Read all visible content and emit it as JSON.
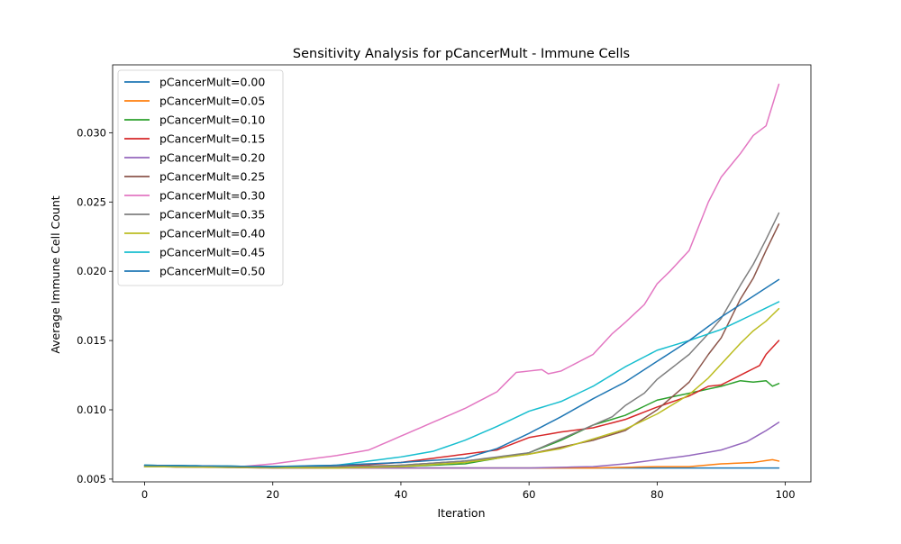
{
  "chart_data": {
    "type": "line",
    "title": "Sensitivity Analysis for pCancerMult - Immune Cells",
    "xlabel": "Iteration",
    "ylabel": "Average Immune Cell Count",
    "xlim": [
      -5,
      104
    ],
    "ylim": [
      0.0048,
      0.0349
    ],
    "xticks": [
      0,
      20,
      40,
      60,
      80,
      100
    ],
    "xtick_labels": [
      "0",
      "20",
      "40",
      "60",
      "80",
      "100"
    ],
    "yticks": [
      0.005,
      0.01,
      0.015,
      0.02,
      0.025,
      0.03
    ],
    "ytick_labels": [
      "0.005",
      "0.010",
      "0.015",
      "0.020",
      "0.025",
      "0.030"
    ],
    "grid": false,
    "legend_position": "upper-left",
    "x": {
      "start": 0,
      "end": 99,
      "step": 1
    },
    "series": [
      {
        "name": "pCancerMult=0.00",
        "color": "#1f77b4",
        "knots": [
          [
            0,
            0.0059
          ],
          [
            20,
            0.0059
          ],
          [
            40,
            0.0058
          ],
          [
            60,
            0.0058
          ],
          [
            99,
            0.0058
          ]
        ]
      },
      {
        "name": "pCancerMult=0.05",
        "color": "#ff7f0e",
        "knots": [
          [
            0,
            0.0059
          ],
          [
            30,
            0.0058
          ],
          [
            60,
            0.0058
          ],
          [
            70,
            0.0058
          ],
          [
            80,
            0.0059
          ],
          [
            85,
            0.0059
          ],
          [
            90,
            0.0061
          ],
          [
            95,
            0.0062
          ],
          [
            98,
            0.0064
          ],
          [
            99,
            0.0063
          ]
        ]
      },
      {
        "name": "pCancerMult=0.10",
        "color": "#2ca02c",
        "knots": [
          [
            0,
            0.006
          ],
          [
            20,
            0.0059
          ],
          [
            40,
            0.0059
          ],
          [
            50,
            0.0061
          ],
          [
            60,
            0.0069
          ],
          [
            65,
            0.0078
          ],
          [
            70,
            0.0089
          ],
          [
            75,
            0.0096
          ],
          [
            80,
            0.0107
          ],
          [
            85,
            0.0112
          ],
          [
            90,
            0.0117
          ],
          [
            93,
            0.0121
          ],
          [
            95,
            0.012
          ],
          [
            97,
            0.0121
          ],
          [
            98,
            0.0117
          ],
          [
            99,
            0.0119
          ]
        ]
      },
      {
        "name": "pCancerMult=0.15",
        "color": "#d62728",
        "knots": [
          [
            0,
            0.0059
          ],
          [
            20,
            0.0059
          ],
          [
            30,
            0.0059
          ],
          [
            40,
            0.0062
          ],
          [
            50,
            0.0068
          ],
          [
            55,
            0.0071
          ],
          [
            60,
            0.008
          ],
          [
            65,
            0.0084
          ],
          [
            70,
            0.0087
          ],
          [
            75,
            0.0093
          ],
          [
            80,
            0.0102
          ],
          [
            85,
            0.011
          ],
          [
            88,
            0.0117
          ],
          [
            90,
            0.0118
          ],
          [
            93,
            0.0125
          ],
          [
            96,
            0.0132
          ],
          [
            97,
            0.014
          ],
          [
            99,
            0.015
          ]
        ]
      },
      {
        "name": "pCancerMult=0.20",
        "color": "#9467bd",
        "knots": [
          [
            0,
            0.0059
          ],
          [
            30,
            0.0058
          ],
          [
            60,
            0.0058
          ],
          [
            70,
            0.0059
          ],
          [
            75,
            0.0061
          ],
          [
            80,
            0.0064
          ],
          [
            85,
            0.0067
          ],
          [
            90,
            0.0071
          ],
          [
            94,
            0.0077
          ],
          [
            97,
            0.0085
          ],
          [
            99,
            0.0091
          ]
        ]
      },
      {
        "name": "pCancerMult=0.25",
        "color": "#8c564b",
        "knots": [
          [
            0,
            0.0059
          ],
          [
            20,
            0.0058
          ],
          [
            30,
            0.0058
          ],
          [
            40,
            0.006
          ],
          [
            50,
            0.0063
          ],
          [
            60,
            0.0068
          ],
          [
            70,
            0.0078
          ],
          [
            75,
            0.0085
          ],
          [
            80,
            0.01
          ],
          [
            85,
            0.012
          ],
          [
            88,
            0.014
          ],
          [
            90,
            0.0152
          ],
          [
            93,
            0.018
          ],
          [
            95,
            0.0195
          ],
          [
            97,
            0.0215
          ],
          [
            99,
            0.0234
          ]
        ]
      },
      {
        "name": "pCancerMult=0.30",
        "color": "#e377c2",
        "knots": [
          [
            0,
            0.0059
          ],
          [
            15,
            0.0059
          ],
          [
            20,
            0.0061
          ],
          [
            25,
            0.0064
          ],
          [
            30,
            0.0067
          ],
          [
            35,
            0.0071
          ],
          [
            40,
            0.0081
          ],
          [
            45,
            0.0091
          ],
          [
            50,
            0.0101
          ],
          [
            55,
            0.0113
          ],
          [
            58,
            0.0127
          ],
          [
            60,
            0.0128
          ],
          [
            62,
            0.0129
          ],
          [
            63,
            0.0126
          ],
          [
            65,
            0.0128
          ],
          [
            70,
            0.014
          ],
          [
            73,
            0.0155
          ],
          [
            75,
            0.0163
          ],
          [
            78,
            0.0176
          ],
          [
            80,
            0.0191
          ],
          [
            82,
            0.02
          ],
          [
            85,
            0.0215
          ],
          [
            88,
            0.025
          ],
          [
            90,
            0.0268
          ],
          [
            93,
            0.0285
          ],
          [
            95,
            0.0298
          ],
          [
            97,
            0.0305
          ],
          [
            98,
            0.032
          ],
          [
            99,
            0.0335
          ]
        ]
      },
      {
        "name": "pCancerMult=0.35",
        "color": "#7f7f7f",
        "knots": [
          [
            0,
            0.0059
          ],
          [
            20,
            0.0059
          ],
          [
            30,
            0.0059
          ],
          [
            40,
            0.006
          ],
          [
            50,
            0.0063
          ],
          [
            60,
            0.0069
          ],
          [
            65,
            0.0079
          ],
          [
            70,
            0.0089
          ],
          [
            73,
            0.0095
          ],
          [
            75,
            0.0103
          ],
          [
            78,
            0.0112
          ],
          [
            80,
            0.0122
          ],
          [
            85,
            0.014
          ],
          [
            88,
            0.0155
          ],
          [
            90,
            0.0166
          ],
          [
            93,
            0.019
          ],
          [
            95,
            0.0205
          ],
          [
            97,
            0.0223
          ],
          [
            99,
            0.0242
          ]
        ]
      },
      {
        "name": "pCancerMult=0.40",
        "color": "#bcbd22",
        "knots": [
          [
            0,
            0.0059
          ],
          [
            30,
            0.0058
          ],
          [
            40,
            0.0059
          ],
          [
            50,
            0.0062
          ],
          [
            60,
            0.0068
          ],
          [
            65,
            0.0072
          ],
          [
            70,
            0.0079
          ],
          [
            75,
            0.0086
          ],
          [
            80,
            0.0097
          ],
          [
            85,
            0.0111
          ],
          [
            88,
            0.0123
          ],
          [
            90,
            0.0133
          ],
          [
            93,
            0.0148
          ],
          [
            95,
            0.0157
          ],
          [
            97,
            0.0164
          ],
          [
            99,
            0.0173
          ]
        ]
      },
      {
        "name": "pCancerMult=0.45",
        "color": "#17becf",
        "knots": [
          [
            0,
            0.006
          ],
          [
            20,
            0.0059
          ],
          [
            30,
            0.006
          ],
          [
            35,
            0.0063
          ],
          [
            40,
            0.0066
          ],
          [
            45,
            0.007
          ],
          [
            50,
            0.0078
          ],
          [
            55,
            0.0088
          ],
          [
            60,
            0.0099
          ],
          [
            65,
            0.0106
          ],
          [
            70,
            0.0117
          ],
          [
            75,
            0.0131
          ],
          [
            80,
            0.0143
          ],
          [
            85,
            0.015
          ],
          [
            90,
            0.0158
          ],
          [
            95,
            0.0169
          ],
          [
            99,
            0.0178
          ]
        ]
      },
      {
        "name": "pCancerMult=0.50",
        "color": "#1f77b4",
        "knots": [
          [
            0,
            0.006
          ],
          [
            20,
            0.0059
          ],
          [
            30,
            0.006
          ],
          [
            40,
            0.0062
          ],
          [
            50,
            0.0065
          ],
          [
            55,
            0.0072
          ],
          [
            60,
            0.0083
          ],
          [
            65,
            0.0095
          ],
          [
            70,
            0.0108
          ],
          [
            75,
            0.012
          ],
          [
            80,
            0.0135
          ],
          [
            85,
            0.015
          ],
          [
            90,
            0.0167
          ],
          [
            95,
            0.0182
          ],
          [
            99,
            0.0194
          ]
        ]
      }
    ]
  }
}
